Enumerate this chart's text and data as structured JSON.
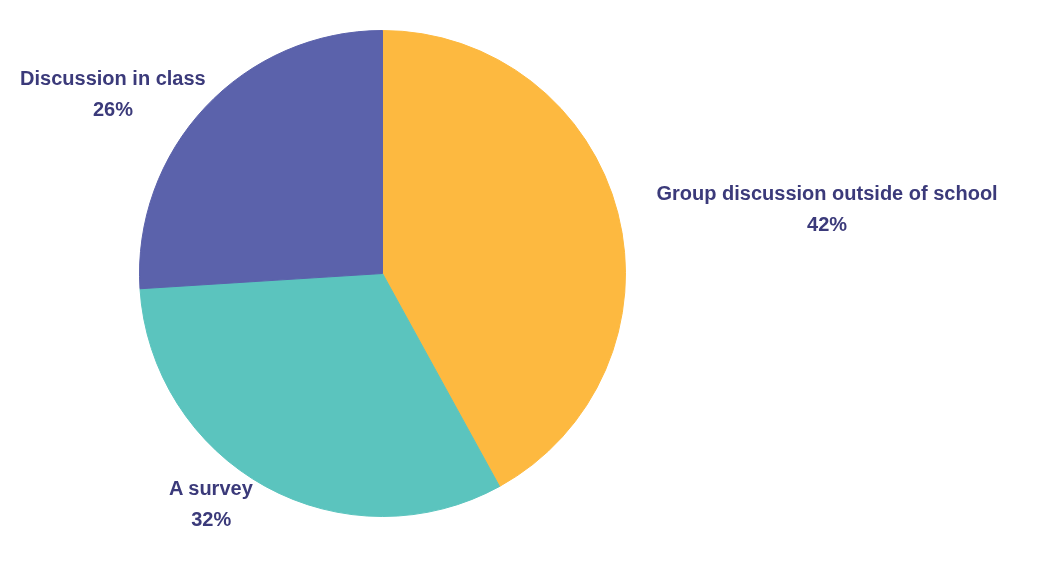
{
  "chart_data": {
    "type": "pie",
    "categories": [
      "Group discussion outside of school",
      "A survey",
      "Discussion in class"
    ],
    "values": [
      42,
      32,
      26
    ],
    "colors": [
      "#fdb940",
      "#5bc4be",
      "#5b62ab"
    ],
    "value_labels": [
      "42%",
      "32%",
      "26%"
    ]
  }
}
